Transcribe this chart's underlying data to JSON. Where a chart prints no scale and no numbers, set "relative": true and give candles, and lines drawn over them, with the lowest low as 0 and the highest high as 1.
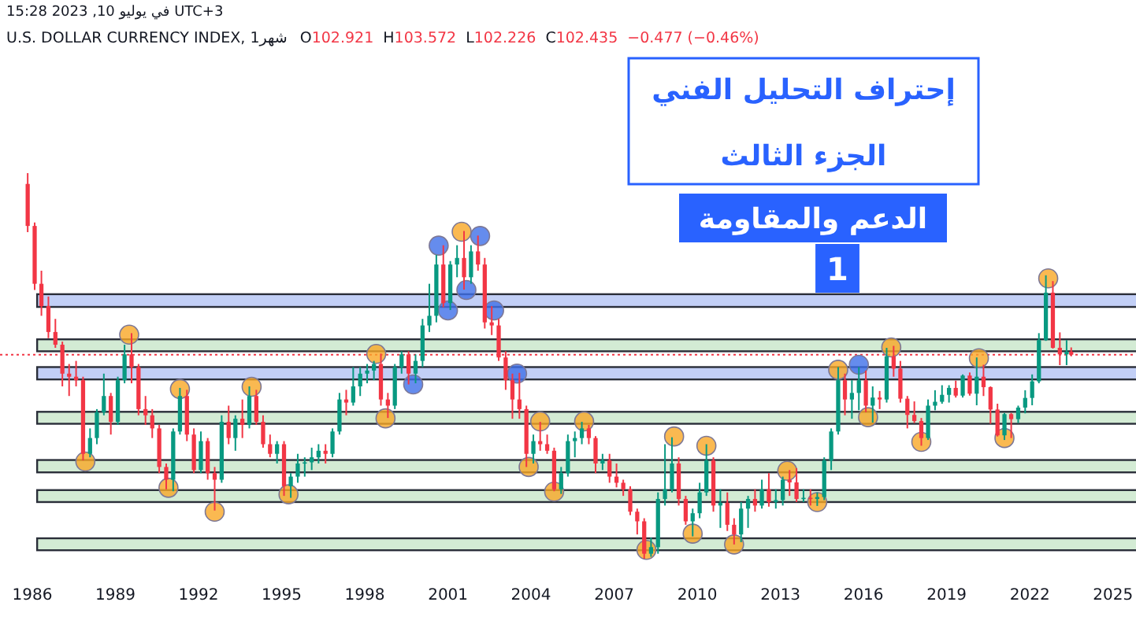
{
  "chart_data": {
    "type": "candlestick",
    "title": "إحتراف التحليل الفني",
    "subtitle": "الجزء الثالث",
    "annotations": [
      "الدعم والمقاومة",
      "1",
      "UTC+3 في يوليو 10, 2023 15:28",
      "U.S. DOLLAR CURRENCY INDEX, 1شهر",
      "O102.921",
      "H103.572",
      "L102.226",
      "C102.435",
      "−0.477 (−0.46%)"
    ],
    "relative": true,
    "xlim": [
      "1984-11",
      "2025-11"
    ],
    "xticks": [
      "1986",
      "1989",
      "1992",
      "1995",
      "1998",
      "2001",
      "2004",
      "2007",
      "2010",
      "2013",
      "2016",
      "2019",
      "2022",
      "2025"
    ],
    "x": [
      "1985-11",
      "1986-02",
      "1986-05",
      "1986-08",
      "1986-11",
      "1987-02",
      "1987-05",
      "1987-08",
      "1987-11",
      "1988-02",
      "1988-05",
      "1988-08",
      "1988-11",
      "1989-02",
      "1989-05",
      "1989-08",
      "1989-11",
      "1990-02",
      "1990-05",
      "1990-08",
      "1990-11",
      "1991-02",
      "1991-05",
      "1991-08",
      "1991-11",
      "1992-02",
      "1992-05",
      "1992-08",
      "1992-11",
      "1993-02",
      "1993-05",
      "1993-08",
      "1993-11",
      "1994-02",
      "1994-05",
      "1994-08",
      "1994-11",
      "1995-02",
      "1995-05",
      "1995-08",
      "1995-11",
      "1996-02",
      "1996-05",
      "1996-08",
      "1996-11",
      "1997-02",
      "1997-05",
      "1997-08",
      "1997-11",
      "1998-02",
      "1998-05",
      "1998-08",
      "1998-11",
      "1999-02",
      "1999-05",
      "1999-08",
      "1999-11",
      "2000-02",
      "2000-05",
      "2000-08",
      "2000-11",
      "2001-02",
      "2001-05",
      "2001-08",
      "2001-11",
      "2002-02",
      "2002-05",
      "2002-08",
      "2002-11",
      "2003-02",
      "2003-05",
      "2003-08",
      "2003-11",
      "2004-02",
      "2004-05",
      "2004-08",
      "2004-11",
      "2005-02",
      "2005-05",
      "2005-08",
      "2005-11",
      "2006-02",
      "2006-05",
      "2006-08",
      "2006-11",
      "2007-02",
      "2007-05",
      "2007-08",
      "2007-11",
      "2008-02",
      "2008-05",
      "2008-08",
      "2008-11",
      "2009-02",
      "2009-05",
      "2009-08",
      "2009-11",
      "2010-02",
      "2010-05",
      "2010-08",
      "2010-11",
      "2011-02",
      "2011-05",
      "2011-08",
      "2011-11",
      "2012-02",
      "2012-05",
      "2012-08",
      "2012-11",
      "2013-02",
      "2013-05",
      "2013-08",
      "2013-11",
      "2014-02",
      "2014-05",
      "2014-08",
      "2014-11",
      "2015-02",
      "2015-05",
      "2015-08",
      "2015-11",
      "2016-02",
      "2016-05",
      "2016-08",
      "2016-11",
      "2017-02",
      "2017-05",
      "2017-08",
      "2017-11",
      "2018-02",
      "2018-05",
      "2018-08",
      "2018-11",
      "2019-02",
      "2019-05",
      "2019-08",
      "2019-11",
      "2020-02",
      "2020-05",
      "2020-08",
      "2020-11",
      "2021-02",
      "2021-05",
      "2021-08",
      "2021-11",
      "2022-02",
      "2022-05",
      "2022-08",
      "2022-11",
      "2023-02",
      "2023-05",
      "2023-07"
    ],
    "ohlc": [
      [
        0.972,
        1.0,
        0.847,
        0.863
      ],
      [
        0.863,
        0.872,
        0.697,
        0.713
      ],
      [
        0.713,
        0.747,
        0.63,
        0.655
      ],
      [
        0.655,
        0.68,
        0.572,
        0.588
      ],
      [
        0.588,
        0.622,
        0.547,
        0.555
      ],
      [
        0.555,
        0.563,
        0.447,
        0.48
      ],
      [
        0.48,
        0.505,
        0.422,
        0.472
      ],
      [
        0.472,
        0.513,
        0.447,
        0.463
      ],
      [
        0.463,
        0.472,
        0.255,
        0.272
      ],
      [
        0.272,
        0.338,
        0.263,
        0.313
      ],
      [
        0.313,
        0.388,
        0.297,
        0.38
      ],
      [
        0.38,
        0.48,
        0.372,
        0.422
      ],
      [
        0.422,
        0.43,
        0.322,
        0.355
      ],
      [
        0.355,
        0.472,
        0.347,
        0.463
      ],
      [
        0.463,
        0.555,
        0.455,
        0.53
      ],
      [
        0.53,
        0.585,
        0.455,
        0.497
      ],
      [
        0.497,
        0.505,
        0.372,
        0.388
      ],
      [
        0.388,
        0.422,
        0.347,
        0.372
      ],
      [
        0.372,
        0.388,
        0.313,
        0.338
      ],
      [
        0.338,
        0.347,
        0.222,
        0.238
      ],
      [
        0.238,
        0.247,
        0.18,
        0.205
      ],
      [
        0.205,
        0.338,
        0.175,
        0.33
      ],
      [
        0.33,
        0.443,
        0.322,
        0.422
      ],
      [
        0.422,
        0.438,
        0.305,
        0.322
      ],
      [
        0.322,
        0.338,
        0.222,
        0.23
      ],
      [
        0.23,
        0.33,
        0.222,
        0.305
      ],
      [
        0.305,
        0.313,
        0.205,
        0.222
      ],
      [
        0.222,
        0.238,
        0.125,
        0.205
      ],
      [
        0.205,
        0.372,
        0.197,
        0.355
      ],
      [
        0.355,
        0.397,
        0.297,
        0.313
      ],
      [
        0.313,
        0.372,
        0.28,
        0.363
      ],
      [
        0.363,
        0.413,
        0.313,
        0.347
      ],
      [
        0.347,
        0.447,
        0.338,
        0.422
      ],
      [
        0.422,
        0.438,
        0.347,
        0.355
      ],
      [
        0.355,
        0.372,
        0.288,
        0.297
      ],
      [
        0.297,
        0.322,
        0.263,
        0.272
      ],
      [
        0.272,
        0.305,
        0.247,
        0.297
      ],
      [
        0.297,
        0.305,
        0.163,
        0.188
      ],
      [
        0.188,
        0.222,
        0.158,
        0.213
      ],
      [
        0.213,
        0.272,
        0.197,
        0.247
      ],
      [
        0.247,
        0.263,
        0.213,
        0.25
      ],
      [
        0.25,
        0.288,
        0.23,
        0.263
      ],
      [
        0.263,
        0.297,
        0.247,
        0.28
      ],
      [
        0.28,
        0.297,
        0.247,
        0.272
      ],
      [
        0.272,
        0.338,
        0.263,
        0.33
      ],
      [
        0.33,
        0.43,
        0.322,
        0.413
      ],
      [
        0.413,
        0.438,
        0.372,
        0.405
      ],
      [
        0.405,
        0.497,
        0.397,
        0.447
      ],
      [
        0.447,
        0.497,
        0.422,
        0.48
      ],
      [
        0.48,
        0.505,
        0.455,
        0.488
      ],
      [
        0.488,
        0.513,
        0.463,
        0.505
      ],
      [
        0.505,
        0.532,
        0.397,
        0.413
      ],
      [
        0.413,
        0.43,
        0.365,
        0.397
      ],
      [
        0.397,
        0.505,
        0.388,
        0.497
      ],
      [
        0.497,
        0.538,
        0.48,
        0.53
      ],
      [
        0.53,
        0.538,
        0.452,
        0.48
      ],
      [
        0.48,
        0.53,
        0.455,
        0.513
      ],
      [
        0.513,
        0.622,
        0.497,
        0.605
      ],
      [
        0.605,
        0.713,
        0.588,
        0.63
      ],
      [
        0.63,
        0.788,
        0.613,
        0.763
      ],
      [
        0.763,
        0.813,
        0.652,
        0.663
      ],
      [
        0.663,
        0.772,
        0.645,
        0.763
      ],
      [
        0.763,
        0.813,
        0.73,
        0.78
      ],
      [
        0.78,
        0.85,
        0.698,
        0.73
      ],
      [
        0.73,
        0.813,
        0.713,
        0.797
      ],
      [
        0.797,
        0.838,
        0.747,
        0.763
      ],
      [
        0.763,
        0.78,
        0.597,
        0.613
      ],
      [
        0.613,
        0.655,
        0.58,
        0.605
      ],
      [
        0.605,
        0.622,
        0.513,
        0.522
      ],
      [
        0.522,
        0.538,
        0.438,
        0.463
      ],
      [
        0.463,
        0.48,
        0.363,
        0.413
      ],
      [
        0.413,
        0.482,
        0.363,
        0.388
      ],
      [
        0.388,
        0.397,
        0.238,
        0.272
      ],
      [
        0.272,
        0.322,
        0.247,
        0.305
      ],
      [
        0.305,
        0.355,
        0.28,
        0.297
      ],
      [
        0.297,
        0.322,
        0.272,
        0.28
      ],
      [
        0.28,
        0.288,
        0.175,
        0.18
      ],
      [
        0.18,
        0.238,
        0.168,
        0.222
      ],
      [
        0.222,
        0.322,
        0.213,
        0.305
      ],
      [
        0.305,
        0.33,
        0.263,
        0.313
      ],
      [
        0.313,
        0.355,
        0.297,
        0.338
      ],
      [
        0.338,
        0.347,
        0.297,
        0.313
      ],
      [
        0.313,
        0.318,
        0.222,
        0.247
      ],
      [
        0.247,
        0.272,
        0.23,
        0.255
      ],
      [
        0.255,
        0.272,
        0.197,
        0.213
      ],
      [
        0.213,
        0.247,
        0.185,
        0.197
      ],
      [
        0.197,
        0.205,
        0.163,
        0.18
      ],
      [
        0.18,
        0.188,
        0.113,
        0.122
      ],
      [
        0.122,
        0.13,
        0.063,
        0.097
      ],
      [
        0.097,
        0.105,
        0.0,
        0.013
      ],
      [
        0.013,
        0.055,
        0.005,
        0.03
      ],
      [
        0.03,
        0.172,
        0.013,
        0.155
      ],
      [
        0.155,
        0.297,
        0.138,
        0.18
      ],
      [
        0.18,
        0.315,
        0.172,
        0.247
      ],
      [
        0.247,
        0.263,
        0.138,
        0.155
      ],
      [
        0.155,
        0.163,
        0.088,
        0.097
      ],
      [
        0.097,
        0.13,
        0.058,
        0.118
      ],
      [
        0.118,
        0.197,
        0.105,
        0.172
      ],
      [
        0.172,
        0.297,
        0.163,
        0.255
      ],
      [
        0.255,
        0.263,
        0.122,
        0.138
      ],
      [
        0.138,
        0.18,
        0.08,
        0.145
      ],
      [
        0.145,
        0.172,
        0.072,
        0.088
      ],
      [
        0.088,
        0.105,
        0.037,
        0.063
      ],
      [
        0.063,
        0.147,
        0.043,
        0.13
      ],
      [
        0.13,
        0.163,
        0.08,
        0.155
      ],
      [
        0.155,
        0.18,
        0.122,
        0.138
      ],
      [
        0.138,
        0.205,
        0.13,
        0.18
      ],
      [
        0.18,
        0.222,
        0.135,
        0.147
      ],
      [
        0.147,
        0.18,
        0.13,
        0.152
      ],
      [
        0.152,
        0.213,
        0.138,
        0.205
      ],
      [
        0.205,
        0.23,
        0.163,
        0.198
      ],
      [
        0.198,
        0.235,
        0.147,
        0.155
      ],
      [
        0.155,
        0.18,
        0.147,
        0.158
      ],
      [
        0.158,
        0.18,
        0.138,
        0.155
      ],
      [
        0.155,
        0.172,
        0.137,
        0.16
      ],
      [
        0.16,
        0.263,
        0.152,
        0.255
      ],
      [
        0.255,
        0.338,
        0.23,
        0.33
      ],
      [
        0.33,
        0.497,
        0.322,
        0.463
      ],
      [
        0.463,
        0.48,
        0.372,
        0.413
      ],
      [
        0.413,
        0.463,
        0.363,
        0.43
      ],
      [
        0.43,
        0.497,
        0.385,
        0.463
      ],
      [
        0.463,
        0.488,
        0.38,
        0.397
      ],
      [
        0.397,
        0.447,
        0.353,
        0.418
      ],
      [
        0.418,
        0.435,
        0.388,
        0.413
      ],
      [
        0.413,
        0.547,
        0.405,
        0.525
      ],
      [
        0.525,
        0.552,
        0.472,
        0.493
      ],
      [
        0.493,
        0.513,
        0.405,
        0.415
      ],
      [
        0.415,
        0.422,
        0.338,
        0.373
      ],
      [
        0.373,
        0.408,
        0.352,
        0.357
      ],
      [
        0.357,
        0.365,
        0.293,
        0.313
      ],
      [
        0.313,
        0.413,
        0.308,
        0.397
      ],
      [
        0.397,
        0.437,
        0.385,
        0.407
      ],
      [
        0.407,
        0.45,
        0.402,
        0.425
      ],
      [
        0.425,
        0.45,
        0.405,
        0.443
      ],
      [
        0.443,
        0.462,
        0.418,
        0.423
      ],
      [
        0.423,
        0.478,
        0.418,
        0.475
      ],
      [
        0.475,
        0.483,
        0.423,
        0.428
      ],
      [
        0.428,
        0.522,
        0.398,
        0.472
      ],
      [
        0.472,
        0.503,
        0.422,
        0.445
      ],
      [
        0.445,
        0.447,
        0.35,
        0.387
      ],
      [
        0.387,
        0.402,
        0.317,
        0.32
      ],
      [
        0.32,
        0.378,
        0.308,
        0.375
      ],
      [
        0.375,
        0.378,
        0.313,
        0.362
      ],
      [
        0.362,
        0.397,
        0.352,
        0.392
      ],
      [
        0.392,
        0.437,
        0.377,
        0.417
      ],
      [
        0.417,
        0.478,
        0.398,
        0.46
      ],
      [
        0.46,
        0.585,
        0.455,
        0.567
      ],
      [
        0.567,
        0.735,
        0.565,
        0.69
      ],
      [
        0.69,
        0.72,
        0.545,
        0.547
      ],
      [
        0.547,
        0.587,
        0.502,
        0.53
      ],
      [
        0.53,
        0.567,
        0.502,
        0.537
      ],
      [
        0.537,
        0.548,
        0.525,
        0.529
      ]
    ],
    "colors": [
      "#f23645",
      "#f23645",
      "#f23645",
      "#f23645",
      "#f23645",
      "#f23645",
      "#f23645",
      "#f23645",
      "#f23645",
      "#089981",
      "#089981",
      "#089981",
      "#f23645",
      "#089981",
      "#089981",
      "#f23645",
      "#f23645",
      "#f23645",
      "#f23645",
      "#f23645",
      "#f23645",
      "#089981",
      "#089981",
      "#f23645",
      "#f23645",
      "#089981",
      "#f23645",
      "#f23645",
      "#089981",
      "#f23645",
      "#089981",
      "#f23645",
      "#089981",
      "#f23645",
      "#f23645",
      "#f23645",
      "#089981",
      "#f23645",
      "#089981",
      "#089981",
      "#089981",
      "#089981",
      "#089981",
      "#f23645",
      "#089981",
      "#089981",
      "#f23645",
      "#089981",
      "#089981",
      "#089981",
      "#089981",
      "#f23645",
      "#f23645",
      "#089981",
      "#089981",
      "#f23645",
      "#089981",
      "#089981",
      "#089981",
      "#089981",
      "#f23645",
      "#089981",
      "#089981",
      "#f23645",
      "#089981",
      "#f23645",
      "#f23645",
      "#f23645",
      "#f23645",
      "#f23645",
      "#f23645",
      "#f23645",
      "#f23645",
      "#089981",
      "#f23645",
      "#f23645",
      "#f23645",
      "#089981",
      "#089981",
      "#089981",
      "#089981",
      "#f23645",
      "#f23645",
      "#089981",
      "#f23645",
      "#f23645",
      "#f23645",
      "#f23645",
      "#f23645",
      "#f23645",
      "#089981",
      "#089981",
      "#089981",
      "#089981",
      "#f23645",
      "#f23645",
      "#089981",
      "#089981",
      "#089981",
      "#f23645",
      "#089981",
      "#f23645",
      "#f23645",
      "#089981",
      "#089981",
      "#f23645",
      "#089981",
      "#f23645",
      "#089981",
      "#089981",
      "#f23645",
      "#f23645",
      "#089981",
      "#f23645",
      "#089981",
      "#089981",
      "#089981",
      "#089981",
      "#f23645",
      "#089981",
      "#089981",
      "#f23645",
      "#089981",
      "#f23645",
      "#089981",
      "#f23645",
      "#f23645",
      "#f23645",
      "#f23645",
      "#f23645",
      "#089981",
      "#089981",
      "#089981",
      "#089981",
      "#f23645",
      "#089981",
      "#f23645",
      "#089981",
      "#f23645",
      "#f23645",
      "#f23645",
      "#089981",
      "#f23645",
      "#089981",
      "#089981",
      "#089981",
      "#089981",
      "#089981",
      "#f23645",
      "#f23645",
      "#089981",
      "#f23645"
    ],
    "marker": "circle",
    "series": [
      {
        "type": "scatter",
        "color": "#f9a825",
        "x": [
          "1987-12",
          "1989-07",
          "1990-12",
          "1991-05",
          "1992-08",
          "1993-12",
          "1995-04",
          "1998-06",
          "1998-10",
          "2001-07",
          "2003-12",
          "2004-05",
          "2004-11",
          "2005-12",
          "2008-03",
          "2009-03",
          "2009-11",
          "2010-05",
          "2011-05",
          "2013-04",
          "2014-05",
          "2015-02",
          "2016-03",
          "2017-01",
          "2018-02",
          "2020-03",
          "2021-02",
          "2022-09"
        ],
        "values": [
          0.252,
          0.581,
          0.184,
          0.44,
          0.122,
          0.446,
          0.167,
          0.531,
          0.364,
          0.848,
          0.238,
          0.356,
          0.174,
          0.356,
          0.023,
          0.317,
          0.065,
          0.293,
          0.037,
          0.228,
          0.147,
          0.49,
          0.367,
          0.548,
          0.303,
          0.52,
          0.313,
          0.727
        ]
      },
      {
        "type": "scatter",
        "color": "#3f6fe8",
        "x": [
          "1999-10",
          "2000-09",
          "2001-01",
          "2001-09",
          "2002-03",
          "2002-09",
          "2003-07",
          "2015-11"
        ],
        "values": [
          0.452,
          0.812,
          0.644,
          0.697,
          0.837,
          0.644,
          0.48,
          0.503
        ]
      }
    ],
    "bands": [
      {
        "axis": "y",
        "from": 0.653,
        "to": 0.686,
        "color": "#b3c3f4"
      },
      {
        "axis": "y",
        "from": 0.538,
        "to": 0.569,
        "color": "#c8e6c9"
      },
      {
        "axis": "y",
        "from": 0.465,
        "to": 0.497,
        "color": "#b3c3f4"
      },
      {
        "axis": "y",
        "from": 0.35,
        "to": 0.381,
        "color": "#c8e6c9"
      },
      {
        "axis": "y",
        "from": 0.224,
        "to": 0.256,
        "color": "#c8e6c9"
      },
      {
        "axis": "y",
        "from": 0.147,
        "to": 0.178,
        "color": "#c8e6c9"
      },
      {
        "axis": "y",
        "from": 0.022,
        "to": 0.053,
        "color": "#c8e6c9"
      }
    ],
    "ref_lines": [
      {
        "axis": "y",
        "value": 0.529,
        "color": "#f23645",
        "line_style": "dotted"
      }
    ]
  }
}
